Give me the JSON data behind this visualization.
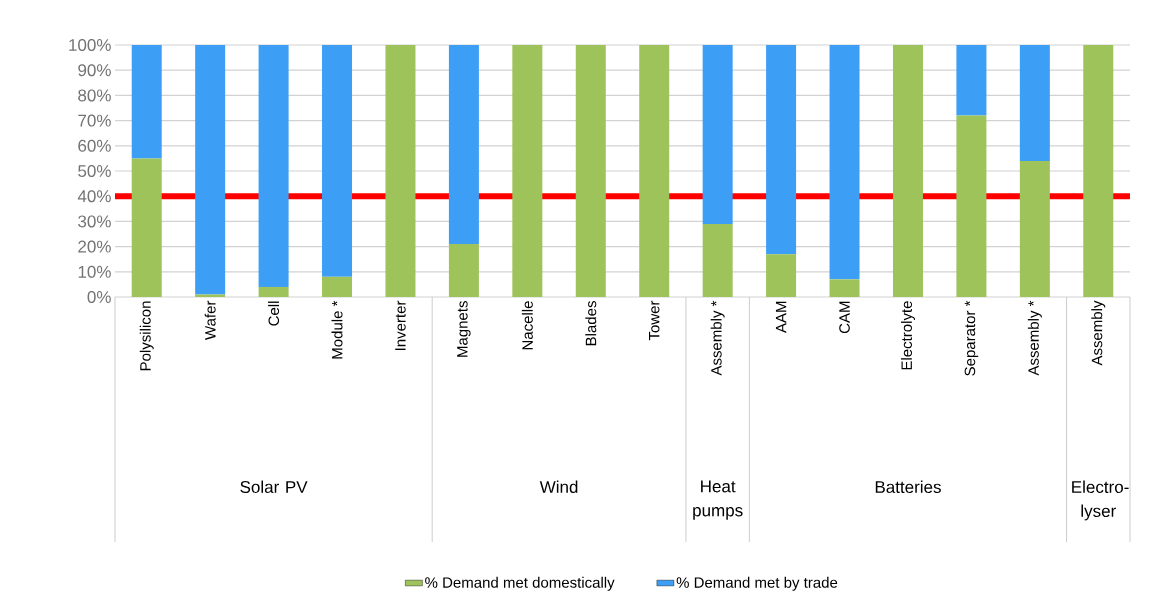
{
  "chart_data": {
    "type": "bar",
    "stacked": true,
    "categories": [
      "Polysilicon",
      "Wafer",
      "Cell",
      "Module *",
      "Inverter",
      "Magnets",
      "Nacelle",
      "Blades",
      "Tower",
      "Assembly *",
      "AAM",
      "CAM",
      "Electrolyte",
      "Separator *",
      "Assembly *",
      "Assembly"
    ],
    "series": [
      {
        "name": "% Demand met domestically",
        "color": "#9dc35a",
        "values": [
          55,
          1,
          4,
          8,
          100,
          21,
          100,
          100,
          100,
          29,
          17,
          7,
          100,
          72,
          54,
          100
        ]
      },
      {
        "name": "% Demand met by trade",
        "color": "#3d9ef5",
        "values": [
          45,
          99,
          96,
          92,
          0,
          79,
          0,
          0,
          0,
          71,
          83,
          93,
          0,
          28,
          46,
          0
        ]
      }
    ],
    "ylim": [
      0,
      100
    ],
    "yticks": [
      {
        "value": 0,
        "label": "0%"
      },
      {
        "value": 10,
        "label": "10%"
      },
      {
        "value": 20,
        "label": "20%"
      },
      {
        "value": 30,
        "label": "30%"
      },
      {
        "value": 40,
        "label": "40%"
      },
      {
        "value": 50,
        "label": "50%"
      },
      {
        "value": 60,
        "label": "60%"
      },
      {
        "value": 70,
        "label": "70%"
      },
      {
        "value": 80,
        "label": "80%"
      },
      {
        "value": 90,
        "label": "90%"
      },
      {
        "value": 100,
        "label": "100%"
      }
    ],
    "grid": "y",
    "legend": "bottom",
    "ref_lines": [
      {
        "axis": "y",
        "value": 40,
        "color": "#ff0000"
      }
    ],
    "annotations": [
      "Solar PV",
      "Wind",
      "Heat pumps",
      "Batteries",
      "Electro-lyser"
    ]
  }
}
